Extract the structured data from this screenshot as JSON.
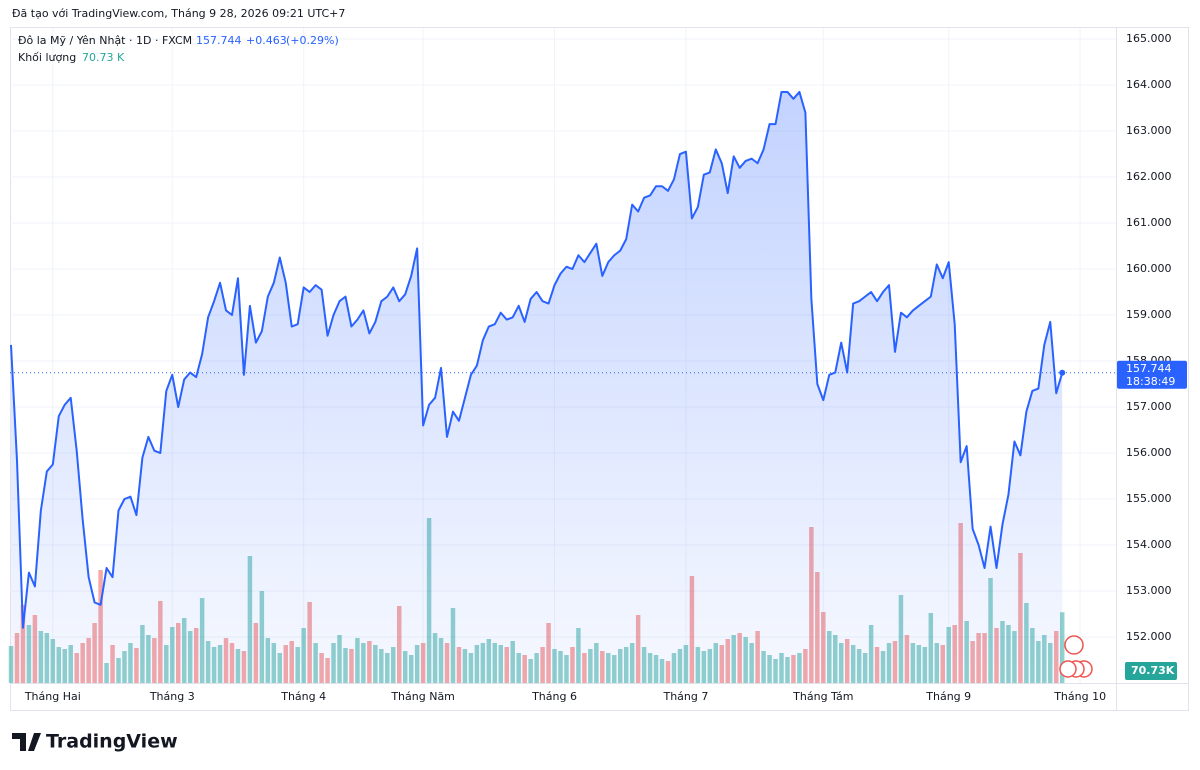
{
  "header": {
    "created": "Đã tạo với TradingView.com, Tháng 9 28, 2026 09:21 UTC+7",
    "brand": "TradingView"
  },
  "chart_data": {
    "type": "area",
    "symbol": "Đô la Mỹ / Yên Nhật · 1D · FXCM",
    "change": {
      "value": 0.463,
      "label": "+0.463"
    },
    "change_pct": {
      "value": 0.29,
      "label": "(+0.29%)"
    },
    "countdown": "18:38:49",
    "color": "#2962ff",
    "grid": true,
    "ylim": [
      151.0,
      165.24
    ],
    "yticks": [
      {
        "value": 152,
        "label": "152.000"
      },
      {
        "value": 153,
        "label": "153.000"
      },
      {
        "value": 154,
        "label": "154.000"
      },
      {
        "value": 155,
        "label": "155.000"
      },
      {
        "value": 156,
        "label": "156.000"
      },
      {
        "value": 157,
        "label": "157.000"
      },
      {
        "value": 158,
        "label": "158.000"
      },
      {
        "value": 159,
        "label": "159.000"
      },
      {
        "value": 160,
        "label": "160.000"
      },
      {
        "value": 161,
        "label": "161.000"
      },
      {
        "value": 162,
        "label": "162.000"
      },
      {
        "value": 163,
        "label": "163.000"
      },
      {
        "value": 164,
        "label": "164.000"
      },
      {
        "value": 165,
        "label": "165.000"
      }
    ],
    "xlim": [
      0,
      184
    ],
    "xticks": [
      {
        "value": 7,
        "label": "Tháng Hai"
      },
      {
        "value": 27,
        "label": "Tháng 3"
      },
      {
        "value": 49,
        "label": "Tháng 4"
      },
      {
        "value": 69,
        "label": "Tháng Năm"
      },
      {
        "value": 91,
        "label": "Tháng 6"
      },
      {
        "value": 113,
        "label": "Tháng 7"
      },
      {
        "value": 136,
        "label": "Tháng Tám"
      },
      {
        "value": 157,
        "label": "Tháng 9"
      },
      {
        "value": 179,
        "label": "Tháng 10"
      }
    ],
    "values": [
      158.35,
      155.85,
      152.2,
      153.4,
      153.1,
      154.75,
      155.6,
      155.75,
      156.8,
      157.05,
      157.2,
      156.05,
      154.55,
      153.3,
      152.75,
      152.7,
      153.5,
      153.3,
      154.75,
      155.0,
      155.05,
      154.65,
      155.9,
      156.35,
      156.05,
      156.0,
      157.35,
      157.7,
      157.0,
      157.6,
      157.75,
      157.65,
      158.15,
      158.95,
      159.3,
      159.7,
      159.1,
      159.0,
      159.8,
      157.7,
      159.2,
      158.4,
      158.65,
      159.4,
      159.7,
      160.25,
      159.7,
      158.75,
      158.8,
      159.6,
      159.5,
      159.65,
      159.55,
      158.55,
      159.0,
      159.3,
      159.4,
      158.75,
      158.9,
      159.1,
      158.6,
      158.85,
      159.3,
      159.4,
      159.6,
      159.3,
      159.45,
      159.85,
      160.45,
      156.6,
      157.05,
      157.2,
      157.85,
      156.35,
      156.9,
      156.7,
      157.2,
      157.7,
      157.9,
      158.45,
      158.75,
      158.8,
      159.05,
      158.9,
      158.95,
      159.2,
      158.85,
      159.35,
      159.5,
      159.3,
      159.25,
      159.65,
      159.9,
      160.05,
      160.0,
      160.3,
      160.15,
      160.35,
      160.55,
      159.85,
      160.15,
      160.3,
      160.4,
      160.65,
      161.4,
      161.25,
      161.55,
      161.6,
      161.8,
      161.8,
      161.7,
      161.95,
      162.5,
      162.55,
      161.1,
      161.35,
      162.05,
      162.1,
      162.6,
      162.3,
      161.65,
      162.45,
      162.2,
      162.35,
      162.4,
      162.3,
      162.6,
      163.15,
      163.15,
      163.85,
      163.85,
      163.7,
      163.85,
      163.4,
      159.35,
      157.5,
      157.15,
      157.7,
      157.75,
      158.4,
      157.75,
      159.25,
      159.3,
      159.4,
      159.5,
      159.3,
      159.5,
      159.65,
      158.2,
      159.05,
      158.95,
      159.1,
      159.2,
      159.3,
      159.4,
      160.1,
      159.8,
      160.15,
      158.8,
      155.8,
      156.15,
      154.35,
      154.0,
      153.5,
      154.4,
      153.5,
      154.45,
      155.1,
      156.25,
      155.95,
      156.9,
      157.35,
      157.4,
      158.35,
      158.85,
      157.3,
      157.744
    ],
    "volume": {
      "name": "Khối lượng",
      "legend_label": "70.73 K",
      "badge_label": "70.73K",
      "up_color": "#26a69a",
      "down_color": "#ef5350",
      "ylim": [
        0,
        240000
      ],
      "values": [
        37000,
        50000,
        78000,
        58000,
        68000,
        52000,
        50000,
        44000,
        36000,
        34000,
        38000,
        30000,
        40000,
        45000,
        60000,
        113000,
        20000,
        38000,
        25000,
        32000,
        40000,
        35000,
        58000,
        48000,
        45000,
        82000,
        38000,
        56000,
        60000,
        65000,
        52000,
        55000,
        85000,
        42000,
        36000,
        38000,
        45000,
        40000,
        34000,
        32000,
        127000,
        60000,
        92000,
        45000,
        40000,
        30000,
        38000,
        42000,
        36000,
        55000,
        81000,
        40000,
        30000,
        25000,
        40000,
        48000,
        35000,
        34000,
        45000,
        40000,
        42000,
        38000,
        34000,
        30000,
        36000,
        77000,
        32000,
        28000,
        38000,
        40000,
        165000,
        50000,
        45000,
        40000,
        75000,
        36000,
        34000,
        30000,
        38000,
        40000,
        44000,
        40000,
        38000,
        36000,
        42000,
        30000,
        28000,
        24000,
        30000,
        36000,
        60000,
        34000,
        32000,
        28000,
        36000,
        55000,
        30000,
        34000,
        40000,
        32000,
        30000,
        28000,
        34000,
        36000,
        40000,
        68000,
        36000,
        30000,
        28000,
        24000,
        22000,
        30000,
        34000,
        38000,
        107000,
        36000,
        32000,
        34000,
        40000,
        38000,
        44000,
        48000,
        50000,
        46000,
        40000,
        52000,
        32000,
        28000,
        24000,
        30000,
        26000,
        28000,
        30000,
        34000,
        156000,
        111000,
        71000,
        52000,
        48000,
        40000,
        44000,
        38000,
        34000,
        30000,
        58000,
        36000,
        32000,
        40000,
        42000,
        88000,
        48000,
        40000,
        38000,
        36000,
        70000,
        40000,
        38000,
        56000,
        58000,
        160000,
        62000,
        42000,
        50000,
        50000,
        105000,
        55000,
        62000,
        58000,
        52000,
        130000,
        80000,
        55000,
        42000,
        48000,
        40000,
        52000,
        70730
      ]
    }
  }
}
